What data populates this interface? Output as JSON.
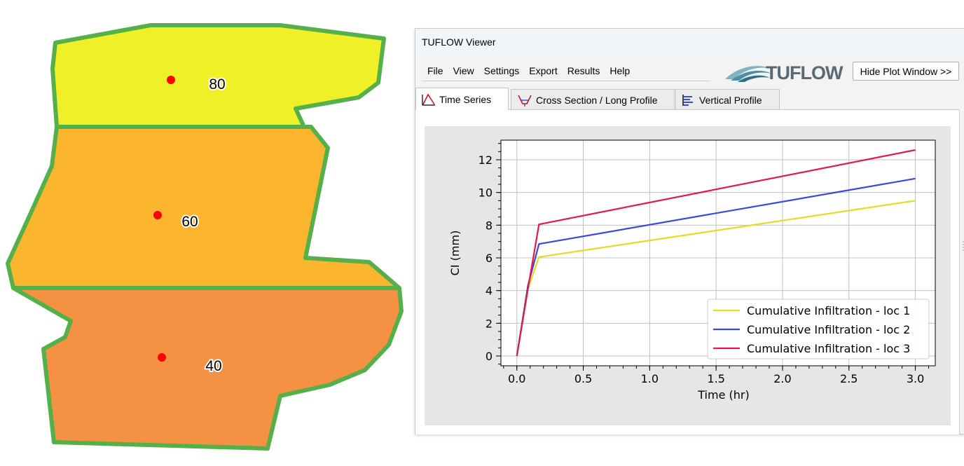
{
  "map": {
    "zones": [
      {
        "label": "80",
        "fill": "#f0f028"
      },
      {
        "label": "60",
        "fill": "#fbb52e"
      },
      {
        "label": "40",
        "fill": "#f59142"
      }
    ],
    "border_color": "#55b04a",
    "point_color": "#ff0000"
  },
  "window": {
    "title": "TUFLOW Viewer",
    "menu": [
      "File",
      "View",
      "Settings",
      "Export",
      "Results",
      "Help"
    ],
    "logo_text": "TUFLOW",
    "hide_plot_button": "Hide Plot Window >>",
    "tabs": [
      {
        "label": "Time Series",
        "icon": "time-series-icon",
        "active": true
      },
      {
        "label": "Cross Section / Long Profile",
        "icon": "cross-section-icon",
        "active": false
      },
      {
        "label": "Vertical Profile",
        "icon": "vertical-profile-icon",
        "active": false
      }
    ]
  },
  "chart_data": {
    "type": "line",
    "xlabel": "Time (hr)",
    "ylabel": "CI (mm)",
    "xlim": [
      -0.12,
      3.15
    ],
    "ylim": [
      -0.6,
      13.2
    ],
    "x_ticks": [
      "0.0",
      "0.5",
      "1.0",
      "1.5",
      "2.0",
      "2.5",
      "3.0"
    ],
    "y_ticks": [
      "0",
      "2",
      "4",
      "6",
      "8",
      "10",
      "12"
    ],
    "grid": true,
    "legend_position": "bottom-right",
    "series": [
      {
        "name": "Cumulative Infiltration - loc 1",
        "color": "#e2dc26",
        "x": [
          0,
          0.0833,
          0.1667,
          3.0
        ],
        "y": [
          0,
          4.1,
          6.05,
          9.5
        ]
      },
      {
        "name": "Cumulative Infiltration - loc 2",
        "color": "#3a48e0",
        "x": [
          0,
          0.0833,
          0.1667,
          3.0
        ],
        "y": [
          0,
          4.3,
          6.85,
          10.85
        ]
      },
      {
        "name": "Cumulative Infiltration - loc 3",
        "color": "#e01a4a",
        "x": [
          0,
          0.0833,
          0.1667,
          3.0
        ],
        "y": [
          0,
          4.1,
          8.05,
          12.6
        ]
      }
    ]
  }
}
